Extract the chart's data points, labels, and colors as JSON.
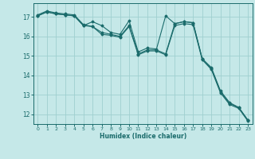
{
  "xlabel": "Humidex (Indice chaleur)",
  "background_color": "#c5e8e8",
  "grid_color": "#9fcfcf",
  "line_color": "#1a6b6b",
  "xlim": [
    -0.5,
    23.5
  ],
  "ylim": [
    11.5,
    17.7
  ],
  "yticks": [
    12,
    13,
    14,
    15,
    16,
    17
  ],
  "xticks": [
    0,
    1,
    2,
    3,
    4,
    5,
    6,
    7,
    8,
    9,
    10,
    11,
    12,
    13,
    14,
    15,
    16,
    17,
    18,
    19,
    20,
    21,
    22,
    23
  ],
  "series": [
    {
      "x": [
        0,
        1,
        2,
        3,
        4,
        5,
        6,
        7,
        8,
        9,
        10,
        11,
        12,
        13,
        14,
        15,
        16,
        17,
        18,
        19,
        20,
        21,
        22,
        23
      ],
      "y": [
        17.1,
        17.3,
        17.2,
        17.15,
        17.1,
        16.6,
        16.5,
        16.2,
        16.1,
        16.0,
        16.55,
        15.1,
        15.3,
        15.3,
        15.1,
        16.65,
        16.75,
        16.7,
        14.85,
        14.4,
        13.2,
        12.6,
        12.35,
        11.7
      ]
    },
    {
      "x": [
        0,
        1,
        2,
        3,
        4,
        5,
        6,
        7,
        8,
        9,
        10,
        11,
        12,
        13,
        14,
        15,
        16,
        17,
        18,
        19,
        20,
        21,
        22,
        23
      ],
      "y": [
        17.05,
        17.25,
        17.15,
        17.1,
        17.05,
        16.55,
        16.75,
        16.55,
        16.2,
        16.1,
        16.8,
        15.2,
        15.4,
        15.35,
        17.05,
        16.65,
        16.75,
        16.7,
        14.85,
        14.35,
        13.15,
        12.55,
        12.35,
        11.7
      ]
    },
    {
      "x": [
        0,
        1,
        2,
        3,
        4,
        5,
        6,
        7,
        8,
        9,
        10,
        11,
        12,
        13,
        14,
        15,
        16,
        17,
        18,
        19,
        20,
        21,
        22,
        23
      ],
      "y": [
        17.05,
        17.25,
        17.15,
        17.1,
        17.05,
        16.55,
        16.5,
        16.1,
        16.05,
        15.95,
        16.5,
        15.05,
        15.25,
        15.25,
        15.05,
        16.55,
        16.65,
        16.6,
        14.8,
        14.3,
        13.1,
        12.5,
        12.3,
        11.65
      ]
    }
  ]
}
